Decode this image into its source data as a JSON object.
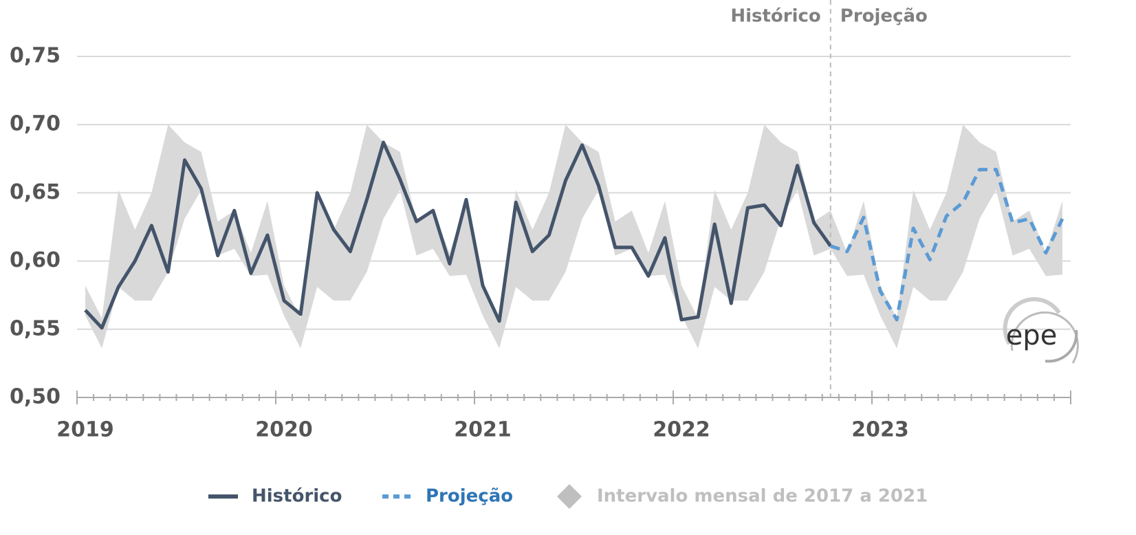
{
  "chart_data": {
    "type": "line",
    "annotations": [
      "Histórico",
      "Projeção"
    ],
    "logo": "epe",
    "categories": [
      "2019",
      null,
      null,
      null,
      null,
      null,
      null,
      null,
      null,
      null,
      null,
      null,
      "2020",
      null,
      null,
      null,
      null,
      null,
      null,
      null,
      null,
      null,
      null,
      null,
      "2021",
      null,
      null,
      null,
      null,
      null,
      null,
      null,
      null,
      null,
      null,
      null,
      "2022",
      null,
      null,
      null,
      null,
      null,
      null,
      null,
      null,
      null,
      null,
      null,
      "2023",
      null,
      null,
      null,
      null,
      null,
      null,
      null,
      null,
      null,
      null,
      null
    ],
    "ylim": [
      0.5,
      0.75
    ],
    "yticks": [
      {
        "value": 0.5,
        "label": "0,50"
      },
      {
        "value": 0.55,
        "label": "0,55"
      },
      {
        "value": 0.6,
        "label": "0,60"
      },
      {
        "value": 0.65,
        "label": "0,65"
      },
      {
        "value": 0.7,
        "label": "0,70"
      },
      {
        "value": 0.75,
        "label": "0,75"
      }
    ],
    "grid": true,
    "series": [
      {
        "name": "Histórico",
        "color": "#44546a",
        "values": [
          0.564,
          0.551,
          0.581,
          0.6,
          0.626,
          0.592,
          0.674,
          0.653,
          0.604,
          0.637,
          0.591,
          0.619,
          0.571,
          0.561,
          0.65,
          0.623,
          0.607,
          0.645,
          0.687,
          0.66,
          0.629,
          0.637,
          0.598,
          0.645,
          0.582,
          0.556,
          0.643,
          0.607,
          0.619,
          0.659,
          0.685,
          0.655,
          0.61,
          0.61,
          0.589,
          0.617,
          0.557,
          0.559,
          0.627,
          0.569,
          0.639,
          0.641,
          0.626,
          0.67,
          0.628,
          0.611,
          null,
          null,
          null,
          null,
          null,
          null,
          null,
          null,
          null,
          null,
          null,
          null,
          null,
          null
        ]
      },
      {
        "name": "Projeção",
        "color": "#5b9bd5",
        "dashed": true,
        "values": [
          null,
          null,
          null,
          null,
          null,
          null,
          null,
          null,
          null,
          null,
          null,
          null,
          null,
          null,
          null,
          null,
          null,
          null,
          null,
          null,
          null,
          null,
          null,
          null,
          null,
          null,
          null,
          null,
          null,
          null,
          null,
          null,
          null,
          null,
          null,
          null,
          null,
          null,
          null,
          null,
          null,
          null,
          null,
          null,
          null,
          0.611,
          0.607,
          0.632,
          0.578,
          0.557,
          0.624,
          0.601,
          0.633,
          0.643,
          0.667,
          0.667,
          0.628,
          0.631,
          0.606,
          0.631
        ]
      },
      {
        "name": "Intervalo mensal de 2017 a 2021",
        "color": "#d9d9d9",
        "band": true,
        "upper": [
          0.582,
          0.558,
          0.652,
          0.623,
          0.65,
          0.7,
          0.687,
          0.68,
          0.629,
          0.637,
          0.606,
          0.644,
          0.582,
          0.558,
          0.652,
          0.623,
          0.65,
          0.7,
          0.687,
          0.68,
          0.629,
          0.637,
          0.606,
          0.644,
          0.582,
          0.558,
          0.652,
          0.623,
          0.65,
          0.7,
          0.687,
          0.68,
          0.629,
          0.637,
          0.606,
          0.644,
          0.582,
          0.558,
          0.652,
          0.623,
          0.65,
          0.7,
          0.687,
          0.68,
          0.629,
          0.637,
          0.606,
          0.644,
          0.582,
          0.558,
          0.652,
          0.623,
          0.65,
          0.7,
          0.687,
          0.68,
          0.629,
          0.637,
          0.606,
          0.644
        ],
        "lower": [
          0.56,
          0.536,
          0.581,
          0.571,
          0.571,
          0.592,
          0.631,
          0.652,
          0.604,
          0.609,
          0.589,
          0.59,
          0.56,
          0.536,
          0.581,
          0.571,
          0.571,
          0.592,
          0.631,
          0.652,
          0.604,
          0.609,
          0.589,
          0.59,
          0.56,
          0.536,
          0.581,
          0.571,
          0.571,
          0.592,
          0.631,
          0.652,
          0.604,
          0.609,
          0.589,
          0.59,
          0.56,
          0.536,
          0.581,
          0.571,
          0.571,
          0.592,
          0.631,
          0.652,
          0.604,
          0.609,
          0.589,
          0.59,
          0.56,
          0.536,
          0.581,
          0.571,
          0.571,
          0.592,
          0.631,
          0.652,
          0.604,
          0.609,
          0.589,
          0.59
        ]
      }
    ]
  }
}
